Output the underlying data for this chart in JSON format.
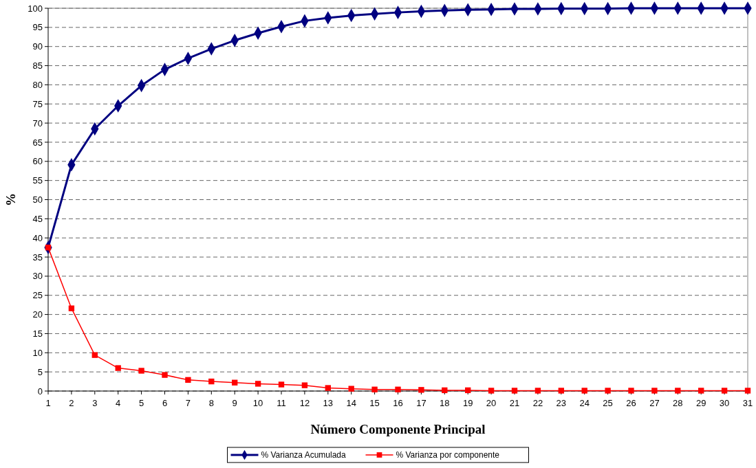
{
  "chart_data": {
    "type": "line",
    "xlabel": "Número Componente Principal",
    "ylabel": "%",
    "x": [
      1,
      2,
      3,
      4,
      5,
      6,
      7,
      8,
      9,
      10,
      11,
      12,
      13,
      14,
      15,
      16,
      17,
      18,
      19,
      20,
      21,
      22,
      23,
      24,
      25,
      26,
      27,
      28,
      29,
      30,
      31
    ],
    "xlim": [
      1,
      31
    ],
    "xticks": [
      1,
      2,
      3,
      4,
      5,
      6,
      7,
      8,
      9,
      10,
      11,
      12,
      13,
      14,
      15,
      16,
      17,
      18,
      19,
      20,
      21,
      22,
      23,
      24,
      25,
      26,
      27,
      28,
      29,
      30,
      31
    ],
    "series": [
      {
        "name": "% Varianza Acumulada",
        "color": "#000080",
        "marker": "diamond",
        "values": [
          37.5,
          59.1,
          68.5,
          74.5,
          79.8,
          84.0,
          86.9,
          89.4,
          91.6,
          93.5,
          95.2,
          96.7,
          97.5,
          98.1,
          98.5,
          98.9,
          99.2,
          99.4,
          99.6,
          99.7,
          99.8,
          99.8,
          99.9,
          99.9,
          99.9,
          100,
          100,
          100,
          100,
          100,
          100
        ]
      },
      {
        "name": "% Varianza por componente",
        "color": "#ff0000",
        "marker": "square",
        "values": [
          37.5,
          21.6,
          9.4,
          6.0,
          5.3,
          4.2,
          2.9,
          2.5,
          2.2,
          1.9,
          1.7,
          1.5,
          0.8,
          0.6,
          0.4,
          0.4,
          0.3,
          0.2,
          0.2,
          0.1,
          0.1,
          0.1,
          0.1,
          0.1,
          0.1,
          0.1,
          0.1,
          0.1,
          0.1,
          0.1,
          0.1
        ]
      }
    ],
    "ylim": [
      0,
      100
    ],
    "yticks": [
      0,
      5,
      10,
      15,
      20,
      25,
      30,
      35,
      40,
      45,
      50,
      55,
      60,
      65,
      70,
      75,
      80,
      85,
      90,
      95,
      100
    ],
    "grid": "y",
    "legend": "bottom"
  }
}
